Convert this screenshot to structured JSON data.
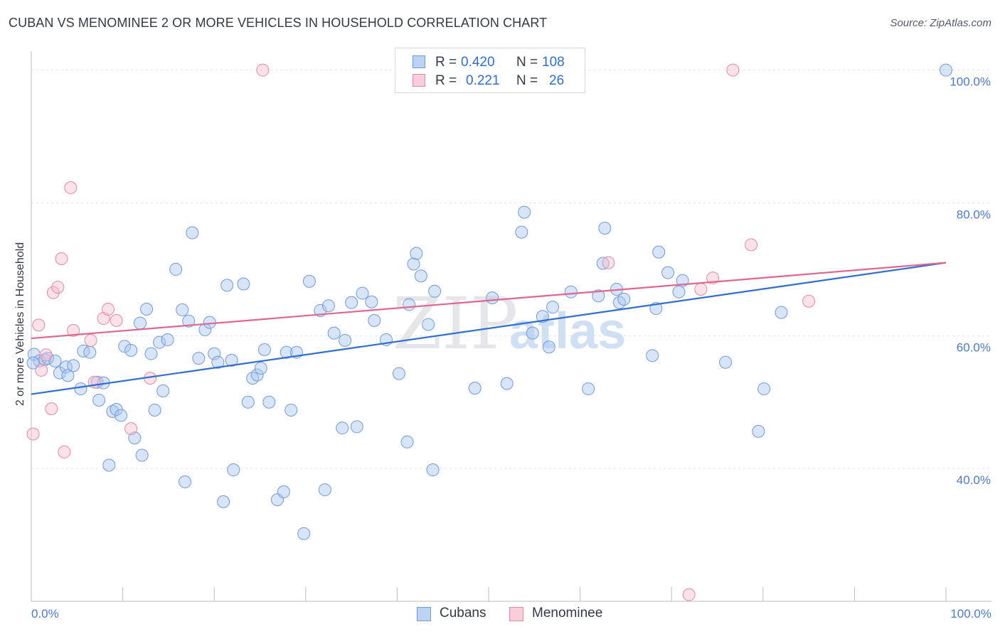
{
  "header": {
    "title": "CUBAN VS MENOMINEE 2 OR MORE VEHICLES IN HOUSEHOLD CORRELATION CHART",
    "source": "Source: ZipAtlas.com"
  },
  "legend": {
    "rows": [
      {
        "r_label": "R =",
        "r_value": "0.420",
        "n_label": "N =",
        "n_value": "108"
      },
      {
        "r_label": "R =",
        "r_value": "0.221",
        "n_label": "N =",
        "n_value": "26"
      }
    ]
  },
  "watermark": {
    "zip": "ZIP",
    "atlas": "atlas"
  },
  "colors": {
    "cubans_fill": "#a9c6f0",
    "cubans_stroke": "#6f9bdc",
    "cubans_line": "#2e6fcf",
    "menominee_fill": "#f6bccd",
    "menominee_stroke": "#e58aa6",
    "menominee_line": "#e0668f",
    "tick_label": "#4a7bd0"
  },
  "chart_data": {
    "type": "scatter",
    "title": "CUBAN VS MENOMINEE 2 OR MORE VEHICLES IN HOUSEHOLD CORRELATION CHART",
    "xlabel": "",
    "ylabel": "2 or more Vehicles in Household",
    "xlim": [
      0,
      100
    ],
    "ylim": [
      20,
      102
    ],
    "x_tick_labels": [
      "0.0%",
      "100.0%"
    ],
    "y_ticks": [
      40,
      60,
      80,
      100
    ],
    "y_tick_labels": [
      "40.0%",
      "60.0%",
      "80.0%",
      "100.0%"
    ],
    "grid": true,
    "series": [
      {
        "name": "Cubans",
        "R": 0.42,
        "N": 108,
        "trend": {
          "x": [
            0,
            100
          ],
          "y": [
            51.2,
            71.0
          ]
        },
        "points": [
          [
            0.3,
            57.2
          ],
          [
            0.9,
            56.2
          ],
          [
            1.5,
            56.4
          ],
          [
            1.8,
            56.6
          ],
          [
            2.6,
            56.2
          ],
          [
            3.1,
            54.4
          ],
          [
            3.8,
            55.3
          ],
          [
            4.0,
            54.0
          ],
          [
            4.6,
            55.5
          ],
          [
            5.4,
            52.0
          ],
          [
            5.7,
            57.7
          ],
          [
            6.4,
            57.5
          ],
          [
            7.2,
            53.0
          ],
          [
            7.4,
            50.3
          ],
          [
            7.9,
            52.9
          ],
          [
            8.5,
            40.5
          ],
          [
            8.9,
            48.6
          ],
          [
            9.3,
            48.9
          ],
          [
            9.8,
            48.0
          ],
          [
            10.2,
            58.4
          ],
          [
            10.9,
            57.8
          ],
          [
            11.3,
            44.6
          ],
          [
            11.9,
            61.9
          ],
          [
            12.1,
            42.0
          ],
          [
            12.6,
            64.0
          ],
          [
            13.1,
            57.3
          ],
          [
            13.5,
            48.8
          ],
          [
            14.0,
            59.0
          ],
          [
            14.4,
            51.7
          ],
          [
            14.9,
            59.4
          ],
          [
            15.8,
            70.0
          ],
          [
            16.5,
            63.9
          ],
          [
            16.8,
            38.0
          ],
          [
            17.2,
            62.2
          ],
          [
            17.6,
            75.5
          ],
          [
            18.3,
            56.6
          ],
          [
            19.0,
            60.9
          ],
          [
            19.5,
            62.0
          ],
          [
            20.0,
            57.3
          ],
          [
            20.4,
            56.0
          ],
          [
            21.0,
            35.0
          ],
          [
            21.4,
            67.6
          ],
          [
            21.9,
            56.3
          ],
          [
            22.1,
            39.8
          ],
          [
            23.2,
            67.8
          ],
          [
            23.7,
            50.0
          ],
          [
            24.2,
            53.6
          ],
          [
            24.7,
            54.1
          ],
          [
            25.1,
            55.1
          ],
          [
            25.5,
            57.9
          ],
          [
            26.0,
            50.0
          ],
          [
            26.9,
            35.3
          ],
          [
            27.6,
            36.5
          ],
          [
            27.9,
            57.5
          ],
          [
            28.4,
            48.8
          ],
          [
            29.0,
            57.5
          ],
          [
            29.8,
            30.2
          ],
          [
            30.4,
            68.2
          ],
          [
            31.6,
            63.8
          ],
          [
            32.1,
            36.8
          ],
          [
            32.5,
            64.5
          ],
          [
            33.1,
            60.4
          ],
          [
            34.0,
            46.1
          ],
          [
            34.3,
            59.3
          ],
          [
            35.0,
            65.0
          ],
          [
            35.6,
            46.3
          ],
          [
            36.2,
            66.4
          ],
          [
            37.2,
            65.1
          ],
          [
            37.5,
            62.3
          ],
          [
            38.8,
            59.4
          ],
          [
            40.2,
            54.3
          ],
          [
            41.1,
            44.0
          ],
          [
            41.3,
            64.7
          ],
          [
            41.8,
            70.8
          ],
          [
            42.1,
            72.4
          ],
          [
            42.6,
            69.0
          ],
          [
            43.4,
            61.7
          ],
          [
            43.9,
            39.8
          ],
          [
            44.1,
            66.7
          ],
          [
            48.5,
            52.1
          ],
          [
            50.4,
            65.7
          ],
          [
            52.0,
            52.8
          ],
          [
            53.6,
            75.6
          ],
          [
            53.9,
            78.6
          ],
          [
            54.8,
            60.4
          ],
          [
            55.9,
            62.9
          ],
          [
            56.6,
            58.3
          ],
          [
            57.0,
            64.3
          ],
          [
            59.0,
            66.6
          ],
          [
            60.9,
            52.0
          ],
          [
            62.0,
            66.0
          ],
          [
            62.5,
            70.9
          ],
          [
            62.7,
            76.2
          ],
          [
            64.0,
            67.0
          ],
          [
            64.3,
            65.0
          ],
          [
            64.8,
            65.5
          ],
          [
            67.9,
            57.0
          ],
          [
            68.3,
            64.1
          ],
          [
            68.6,
            72.6
          ],
          [
            69.6,
            69.5
          ],
          [
            70.8,
            66.6
          ],
          [
            71.2,
            68.3
          ],
          [
            75.9,
            56.0
          ],
          [
            79.5,
            45.6
          ],
          [
            80.1,
            52.0
          ],
          [
            82.0,
            63.5
          ],
          [
            100,
            100
          ],
          [
            0.2,
            55.9
          ]
        ]
      },
      {
        "name": "Menominee",
        "R": 0.221,
        "N": 26,
        "trend": {
          "x": [
            0,
            100
          ],
          "y": [
            59.6,
            71.0
          ]
        },
        "points": [
          [
            0.2,
            45.2
          ],
          [
            0.8,
            61.6
          ],
          [
            1.1,
            54.8
          ],
          [
            1.6,
            57.1
          ],
          [
            2.2,
            49.0
          ],
          [
            2.4,
            66.5
          ],
          [
            2.9,
            67.3
          ],
          [
            3.3,
            71.6
          ],
          [
            3.6,
            42.5
          ],
          [
            4.3,
            82.3
          ],
          [
            4.6,
            60.8
          ],
          [
            6.5,
            59.3
          ],
          [
            6.9,
            53.0
          ],
          [
            7.9,
            62.6
          ],
          [
            8.4,
            64.0
          ],
          [
            9.3,
            62.3
          ],
          [
            10.9,
            46.0
          ],
          [
            13.0,
            53.6
          ],
          [
            25.3,
            100
          ],
          [
            63.1,
            71.0
          ],
          [
            71.9,
            21.0
          ],
          [
            73.2,
            67.0
          ],
          [
            74.5,
            68.7
          ],
          [
            76.7,
            100
          ],
          [
            78.7,
            73.7
          ],
          [
            85.0,
            65.2
          ]
        ]
      }
    ],
    "legend_entries": [
      "Cubans",
      "Menominee"
    ]
  }
}
